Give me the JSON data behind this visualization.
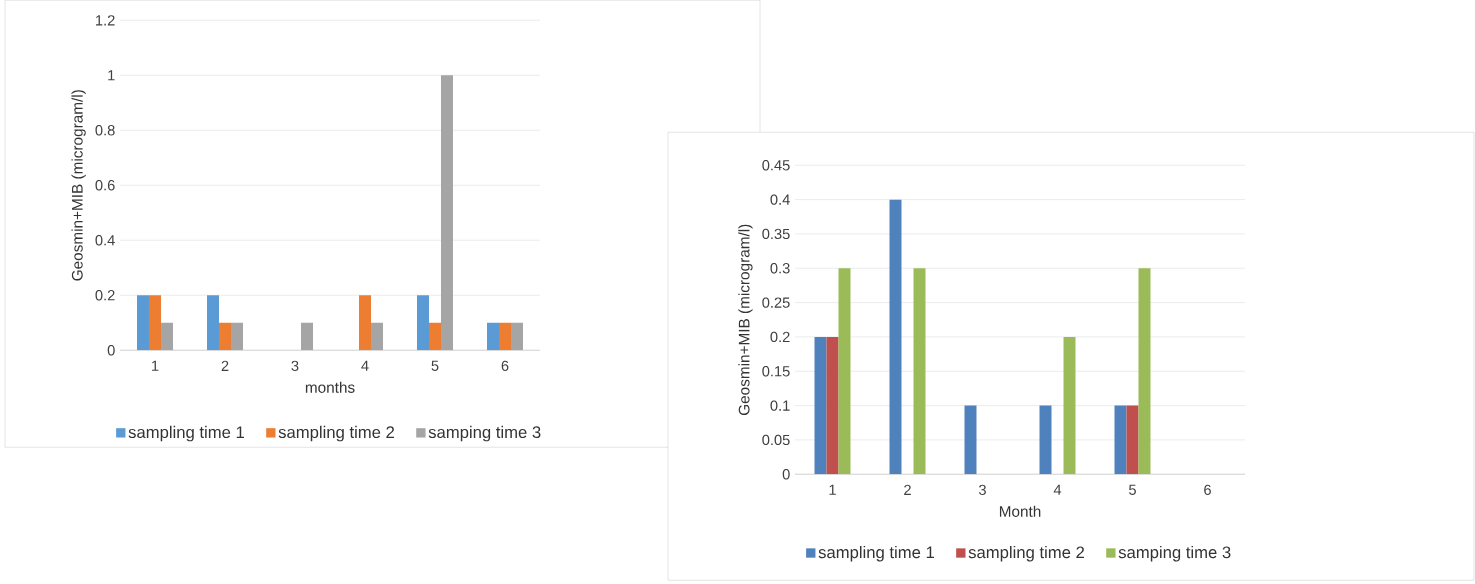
{
  "chart_data": [
    {
      "type": "bar",
      "categories": [
        "1",
        "2",
        "3",
        "4",
        "5",
        "6"
      ],
      "xlabel": "months",
      "ylabel": "Geosmin+MIB (microgram/l)",
      "series": [
        {
          "name": "sampling time 1",
          "color": "#5b9bd5",
          "values": [
            0.2,
            0.2,
            0,
            0,
            0.2,
            0.1
          ]
        },
        {
          "name": "sampling time 2",
          "color": "#ed7d31",
          "values": [
            0.2,
            0.1,
            0,
            0.2,
            0.1,
            0.1
          ]
        },
        {
          "name": "samping time 3",
          "color": "#a5a5a5",
          "values": [
            0.1,
            0.1,
            0.1,
            0.1,
            1,
            0.1
          ]
        }
      ],
      "ylim": [
        0,
        1.2
      ],
      "yticks": [
        0,
        0.2,
        0.4,
        0.6,
        0.8,
        1,
        1.2
      ],
      "grid": "y",
      "legend": "bottom"
    },
    {
      "type": "bar",
      "categories": [
        "1",
        "2",
        "3",
        "4",
        "5",
        "6"
      ],
      "xlabel": "Month",
      "ylabel": "Geosmin+MIB (microgram/l)",
      "series": [
        {
          "name": "sampling time 1",
          "color": "#4f81bd",
          "values": [
            0.2,
            0.4,
            0.1,
            0.1,
            0.1,
            0
          ]
        },
        {
          "name": "sampling time 2",
          "color": "#c0504d",
          "values": [
            0.2,
            0,
            0,
            0,
            0.1,
            0
          ]
        },
        {
          "name": "samping time 3",
          "color": "#9bbb59",
          "values": [
            0.3,
            0.3,
            0,
            0.2,
            0.3,
            0
          ]
        }
      ],
      "ylim": [
        0,
        0.45
      ],
      "yticks": [
        0,
        0.05,
        0.1,
        0.15,
        0.2,
        0.25,
        0.3,
        0.35,
        0.4,
        0.45
      ],
      "grid": "y",
      "legend": "bottom"
    }
  ]
}
